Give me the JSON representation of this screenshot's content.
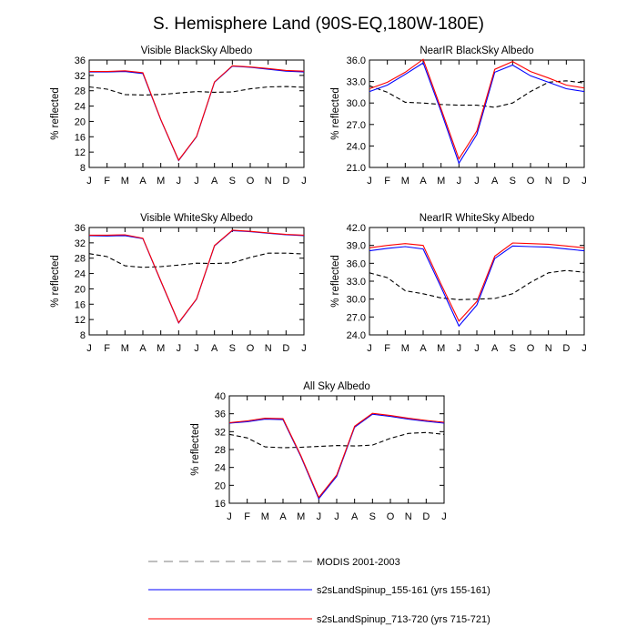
{
  "title": "S. Hemisphere Land (90S-EQ,180W-180E)",
  "colors": {
    "modis": "#000000",
    "run155": "#0000ff",
    "run713": "#ff0000",
    "legend_line": "#999999"
  },
  "legend": [
    {
      "label": "MODIS 2001-2003",
      "style": "dashed",
      "series": "modis"
    },
    {
      "label": "s2sLandSpinup_155-161 (yrs 155-161)",
      "style": "solid",
      "series": "run155"
    },
    {
      "label": "s2sLandSpinup_713-720 (yrs 715-721)",
      "style": "solid",
      "series": "run713"
    }
  ],
  "chart_data": [
    {
      "type": "line",
      "title": "Visible BlackSky Albedo",
      "ylabel": "% reflected",
      "categories": [
        "J",
        "F",
        "M",
        "A",
        "M",
        "J",
        "J",
        "A",
        "S",
        "O",
        "N",
        "D",
        "J"
      ],
      "ylim": [
        8,
        36
      ],
      "yticks": [
        "8",
        "12",
        "16",
        "20",
        "24",
        "28",
        "32",
        "36"
      ],
      "series": [
        {
          "name": "MODIS 2001-2003",
          "key": "modis",
          "values": [
            29.0,
            28.4,
            27.0,
            26.9,
            27.0,
            27.4,
            27.8,
            27.6,
            27.7,
            28.5,
            29.0,
            29.1,
            28.9
          ]
        },
        {
          "name": "s2sLandSpinup_155-161 (yrs 155-161)",
          "key": "run155",
          "values": [
            32.9,
            32.9,
            33.0,
            32.5,
            20.4,
            9.8,
            16.0,
            30.2,
            34.4,
            34.1,
            33.6,
            33.1,
            32.9
          ]
        },
        {
          "name": "s2sLandSpinup_713-720 (yrs 715-721)",
          "key": "run713",
          "values": [
            33.0,
            33.0,
            33.2,
            32.7,
            20.5,
            9.9,
            16.1,
            30.3,
            34.5,
            34.2,
            33.8,
            33.3,
            33.1
          ]
        }
      ]
    },
    {
      "type": "line",
      "title": "NearIR BlackSky Albedo",
      "ylabel": "% reflected",
      "categories": [
        "J",
        "F",
        "M",
        "A",
        "M",
        "J",
        "J",
        "A",
        "S",
        "O",
        "N",
        "D",
        "J"
      ],
      "ylim": [
        21,
        36
      ],
      "yticks": [
        "21.0",
        "24.0",
        "27.0",
        "30.0",
        "33.0",
        "36.0"
      ],
      "series": [
        {
          "name": "MODIS 2001-2003",
          "key": "modis",
          "values": [
            32.4,
            31.5,
            30.1,
            30.0,
            29.8,
            29.7,
            29.7,
            29.4,
            30.0,
            31.6,
            32.9,
            33.1,
            32.8
          ]
        },
        {
          "name": "s2sLandSpinup_155-161 (yrs 155-161)",
          "key": "run155",
          "values": [
            31.6,
            32.5,
            34.0,
            35.6,
            28.8,
            21.6,
            25.6,
            34.3,
            35.3,
            33.8,
            32.9,
            32.0,
            31.6
          ]
        },
        {
          "name": "s2sLandSpinup_713-720 (yrs 715-721)",
          "key": "run713",
          "values": [
            32.0,
            32.9,
            34.3,
            36.1,
            29.2,
            22.2,
            26.1,
            34.7,
            35.8,
            34.4,
            33.5,
            32.5,
            32.1
          ]
        }
      ]
    },
    {
      "type": "line",
      "title": "Visible WhiteSky Albedo",
      "ylabel": "% reflected",
      "categories": [
        "J",
        "F",
        "M",
        "A",
        "M",
        "J",
        "J",
        "A",
        "S",
        "O",
        "N",
        "D",
        "J"
      ],
      "ylim": [
        8,
        36
      ],
      "yticks": [
        "8",
        "12",
        "16",
        "20",
        "24",
        "28",
        "32",
        "36"
      ],
      "series": [
        {
          "name": "MODIS 2001-2003",
          "key": "modis",
          "values": [
            29.2,
            28.4,
            26.0,
            25.6,
            25.8,
            26.2,
            26.7,
            26.6,
            26.8,
            28.2,
            29.3,
            29.3,
            29.1
          ]
        },
        {
          "name": "s2sLandSpinup_155-161 (yrs 155-161)",
          "key": "run155",
          "values": [
            33.9,
            33.8,
            33.9,
            33.1,
            22.0,
            11.1,
            17.3,
            31.2,
            35.2,
            34.9,
            34.5,
            34.1,
            33.9
          ]
        },
        {
          "name": "s2sLandSpinup_713-720 (yrs 715-721)",
          "key": "run713",
          "values": [
            34.0,
            34.0,
            34.1,
            33.2,
            22.1,
            11.2,
            17.4,
            31.3,
            35.3,
            35.0,
            34.6,
            34.2,
            34.0
          ]
        }
      ]
    },
    {
      "type": "line",
      "title": "NearIR WhiteSky Albedo",
      "ylabel": "% reflected",
      "categories": [
        "J",
        "F",
        "M",
        "A",
        "M",
        "J",
        "J",
        "A",
        "S",
        "O",
        "N",
        "D",
        "J"
      ],
      "ylim": [
        24,
        42
      ],
      "yticks": [
        "24.0",
        "27.0",
        "30.0",
        "33.0",
        "36.0",
        "39.0",
        "42.0"
      ],
      "series": [
        {
          "name": "MODIS 2001-2003",
          "key": "modis",
          "values": [
            34.4,
            33.6,
            31.4,
            30.9,
            30.2,
            29.9,
            30.0,
            30.1,
            30.9,
            32.8,
            34.4,
            34.8,
            34.5
          ]
        },
        {
          "name": "s2sLandSpinup_155-161 (yrs 155-161)",
          "key": "run155",
          "values": [
            38.1,
            38.5,
            38.8,
            38.4,
            32.0,
            25.5,
            29.0,
            36.8,
            38.9,
            38.8,
            38.7,
            38.4,
            38.1
          ]
        },
        {
          "name": "s2sLandSpinup_713-720 (yrs 715-721)",
          "key": "run713",
          "values": [
            38.6,
            39.0,
            39.3,
            39.0,
            32.5,
            26.3,
            29.6,
            37.2,
            39.4,
            39.3,
            39.2,
            38.9,
            38.6
          ]
        }
      ]
    },
    {
      "type": "line",
      "title": "All Sky Albedo",
      "ylabel": "% reflected",
      "categories": [
        "J",
        "F",
        "M",
        "A",
        "M",
        "J",
        "J",
        "A",
        "S",
        "O",
        "N",
        "D",
        "J"
      ],
      "ylim": [
        16,
        40
      ],
      "yticks": [
        "16",
        "20",
        "24",
        "28",
        "32",
        "36",
        "40"
      ],
      "series": [
        {
          "name": "MODIS 2001-2003",
          "key": "modis",
          "values": [
            31.4,
            30.6,
            28.6,
            28.4,
            28.5,
            28.7,
            28.9,
            28.8,
            29.0,
            30.5,
            31.6,
            31.8,
            31.4
          ]
        },
        {
          "name": "s2sLandSpinup_155-161 (yrs 155-161)",
          "key": "run155",
          "values": [
            33.9,
            34.2,
            34.8,
            34.7,
            26.4,
            17.0,
            22.0,
            33.0,
            35.9,
            35.4,
            34.8,
            34.3,
            33.9
          ]
        },
        {
          "name": "s2sLandSpinup_713-720 (yrs 715-721)",
          "key": "run713",
          "values": [
            34.0,
            34.4,
            35.0,
            34.9,
            26.6,
            17.3,
            22.3,
            33.2,
            36.1,
            35.6,
            35.0,
            34.5,
            34.1
          ]
        }
      ]
    }
  ]
}
